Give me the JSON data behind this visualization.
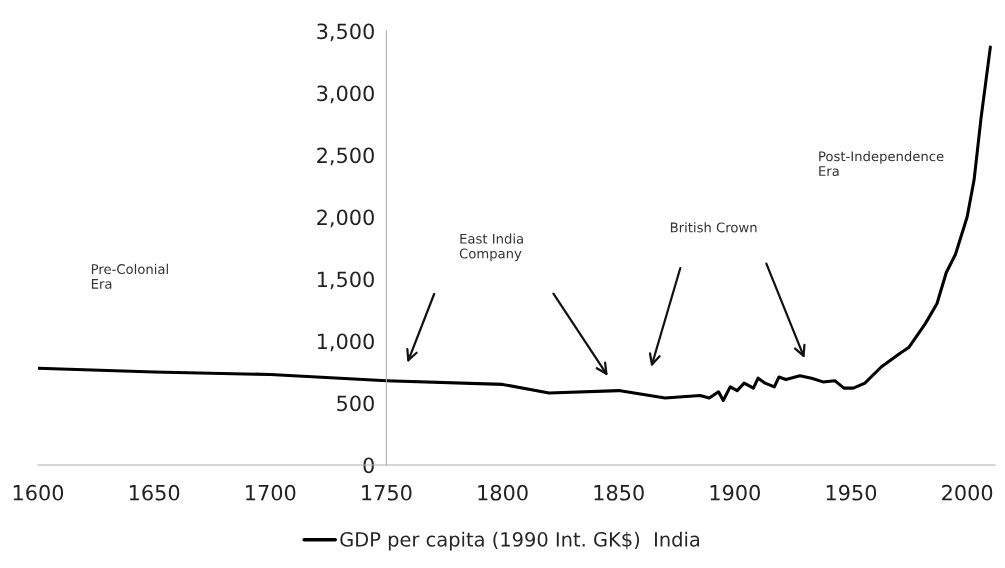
{
  "chart_data": {
    "type": "line",
    "xlim": [
      1600,
      2012
    ],
    "ylim": [
      0,
      3500
    ],
    "xticks": [
      1600,
      1650,
      1700,
      1750,
      1800,
      1850,
      1900,
      1950,
      2000
    ],
    "yticks": [
      0,
      500,
      {
        "value": 1000,
        "label": "1,000"
      },
      {
        "value": 1500,
        "label": "1,500"
      },
      {
        "value": 2000,
        "label": "2,000"
      },
      {
        "value": 2500,
        "label": "2,500"
      },
      {
        "value": 3000,
        "label": "3,000"
      },
      {
        "value": 3500,
        "label": "3,500"
      }
    ],
    "x": [
      1600,
      1650,
      1700,
      1750,
      1800,
      1820,
      1850,
      1870,
      1885,
      1889,
      1893,
      1895,
      1898,
      1901,
      1904,
      1908,
      1910,
      1913,
      1917,
      1919,
      1922,
      1928,
      1933,
      1938,
      1943,
      1947,
      1951,
      1956,
      1963,
      1971,
      1975,
      1982,
      1987,
      1991,
      1995,
      2000,
      2003,
      2006,
      2010
    ],
    "series": [
      {
        "name": "GDP per capita (1990 Int. GK$)  India",
        "color": "#000000",
        "values": [
          780,
          750,
          730,
          680,
          650,
          580,
          600,
          540,
          560,
          540,
          590,
          520,
          630,
          600,
          660,
          620,
          700,
          660,
          630,
          710,
          690,
          720,
          700,
          670,
          680,
          620,
          620,
          660,
          790,
          900,
          950,
          1140,
          1300,
          1550,
          1700,
          2000,
          2300,
          2800,
          3370
        ]
      }
    ],
    "annotations": [
      "Pre-Colonial\nEra",
      "East India\nCompany",
      "British Crown",
      "Post-Independence\nEra"
    ],
    "legend": "bottom",
    "marker": "none",
    "line_style": "solid",
    "grid": false
  }
}
